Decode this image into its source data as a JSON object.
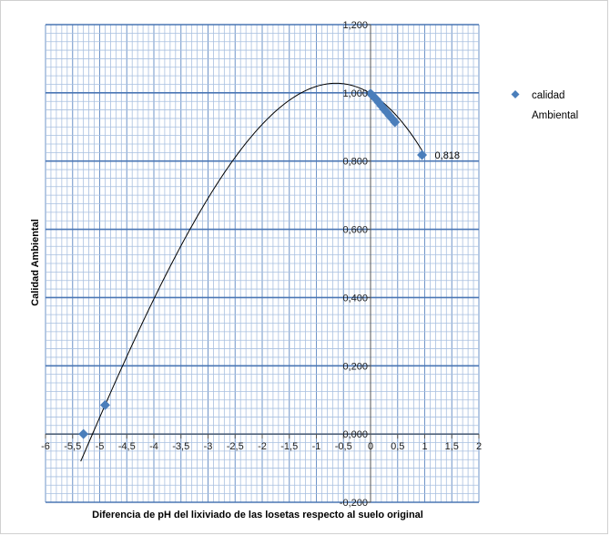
{
  "chart_data": {
    "type": "scatter",
    "title": "",
    "xlabel": "Diferencia de pH del lixiviado de las losetas respecto al suelo original",
    "ylabel": "Calidad  Ambiental",
    "xlim": [
      -6,
      2
    ],
    "ylim": [
      -0.2,
      1.2
    ],
    "x_ticks": [
      "-6",
      "-5,5",
      "-5",
      "-4,5",
      "-4",
      "-3,5",
      "-3",
      "-2,5",
      "-2",
      "-1,5",
      "-1",
      "-0,5",
      "0",
      "0,5",
      "1",
      "1,5",
      "2"
    ],
    "y_ticks": [
      "-0,200",
      "0,000",
      "0,200",
      "0,400",
      "0,600",
      "0,800",
      "1,000",
      "1,200"
    ],
    "grid": true,
    "legend_position": "right",
    "series": [
      {
        "name": "calidad Ambiental",
        "marker": "diamond",
        "color": "#4a7ebb",
        "points": [
          {
            "x": -5.3,
            "y": 0.0
          },
          {
            "x": -4.9,
            "y": 0.085
          },
          {
            "x": 0.0,
            "y": 0.998
          },
          {
            "x": 0.05,
            "y": 0.99
          },
          {
            "x": 0.1,
            "y": 0.982
          },
          {
            "x": 0.15,
            "y": 0.972
          },
          {
            "x": 0.2,
            "y": 0.962
          },
          {
            "x": 0.25,
            "y": 0.952
          },
          {
            "x": 0.3,
            "y": 0.943
          },
          {
            "x": 0.35,
            "y": 0.933
          },
          {
            "x": 0.4,
            "y": 0.924
          },
          {
            "x": 0.45,
            "y": 0.914
          },
          {
            "x": 0.95,
            "y": 0.818
          }
        ]
      }
    ],
    "trendline": {
      "type": "polynomial",
      "color": "#000000",
      "x_range": [
        -5.35,
        1.0
      ],
      "vertex": {
        "x": -0.95,
        "y": 1.025
      },
      "samples": [
        {
          "x": -5.35,
          "y": -0.08
        },
        {
          "x": -4.9,
          "y": 0.085
        },
        {
          "x": 0.0,
          "y": 0.998
        },
        {
          "x": 1.0,
          "y": 0.818
        }
      ]
    },
    "data_labels": [
      {
        "x": 0.95,
        "y": 0.818,
        "text": "0,818"
      }
    ],
    "legend": {
      "entries": [
        {
          "line1": "calidad",
          "line2": "Ambiental"
        }
      ]
    }
  }
}
